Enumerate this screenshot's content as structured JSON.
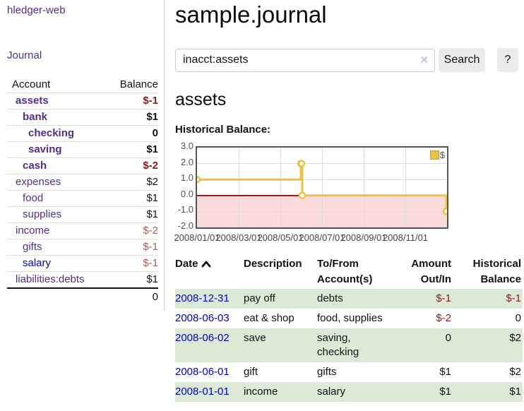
{
  "app": {
    "brand": "hledger-web"
  },
  "nav": {
    "journal": "Journal"
  },
  "sidebar": {
    "header": {
      "account": "Account",
      "balance": "Balance"
    },
    "accounts": [
      {
        "name": "assets",
        "balance": "$-1"
      },
      {
        "name": "bank",
        "balance": "$1"
      },
      {
        "name": "checking",
        "balance": "0"
      },
      {
        "name": "saving",
        "balance": "$1"
      },
      {
        "name": "cash",
        "balance": "$-2"
      },
      {
        "name": "expenses",
        "balance": "$2"
      },
      {
        "name": "food",
        "balance": "$1"
      },
      {
        "name": "supplies",
        "balance": "$1"
      },
      {
        "name": "income",
        "balance": "$-2"
      },
      {
        "name": "gifts",
        "balance": "$-1"
      },
      {
        "name": "salary",
        "balance": "$-1"
      },
      {
        "name": "liabilities:debts",
        "balance": "$1"
      }
    ],
    "total": "0"
  },
  "header": {
    "title": "sample.journal"
  },
  "search": {
    "value": "inacct:assets",
    "clear_icon": "✕",
    "search_label": "Search",
    "help_label": "?"
  },
  "account_page": {
    "title": "assets",
    "section_label": "Historical Balance:"
  },
  "chart_data": {
    "type": "line",
    "step": true,
    "title": "Historical Balance",
    "series": [
      {
        "name": "$",
        "color": "#edc240",
        "points": [
          [
            "2008-01-01",
            1
          ],
          [
            "2008-06-01",
            2
          ],
          [
            "2008-06-02",
            2
          ],
          [
            "2008-06-03",
            0
          ],
          [
            "2008-12-31",
            -1
          ]
        ]
      }
    ],
    "x_range": [
      "2008-01-01",
      "2009-01-01"
    ],
    "ylim": [
      -2,
      3
    ],
    "y_ticks": [
      "3.0",
      "2.0",
      "1.0",
      "0.0",
      "-1.0",
      "-2.0"
    ],
    "x_ticks": [
      "2008/01/01",
      "2008/03/01",
      "2008/05/01",
      "2008/07/01",
      "2008/09/01",
      "2008/11/01"
    ],
    "legend": {
      "label": "$",
      "position": "top-right"
    },
    "grid": true,
    "negative_region_color": "#fbdcdc",
    "zero_line_color": "#a01c1c"
  },
  "register": {
    "columns": {
      "date": "Date",
      "description": "Description",
      "accounts": "To/From Account(s)",
      "amount": "Amount Out/In",
      "balance": "Historical Balance"
    },
    "rows": [
      {
        "date": "2008-12-31",
        "description": "pay off",
        "accounts": "debts",
        "amount": "$-1",
        "balance": "$-1"
      },
      {
        "date": "2008-06-03",
        "description": "eat & shop",
        "accounts": "food, supplies",
        "amount": "$-2",
        "balance": "0"
      },
      {
        "date": "2008-06-02",
        "description": "save",
        "accounts": "saving, checking",
        "amount": "0",
        "balance": "$2"
      },
      {
        "date": "2008-06-01",
        "description": "gift",
        "accounts": "gifts",
        "amount": "$1",
        "balance": "$2"
      },
      {
        "date": "2008-01-01",
        "description": "income",
        "accounts": "salary",
        "amount": "$1",
        "balance": "$1"
      }
    ]
  },
  "colors": {
    "link_purple": "#552d90",
    "link_blue": "#0000d6",
    "negative_dark": "#8b1a1a",
    "negative_light": "#b05c5c",
    "row_green": "#dcead5",
    "chart_gold": "#edc240"
  }
}
